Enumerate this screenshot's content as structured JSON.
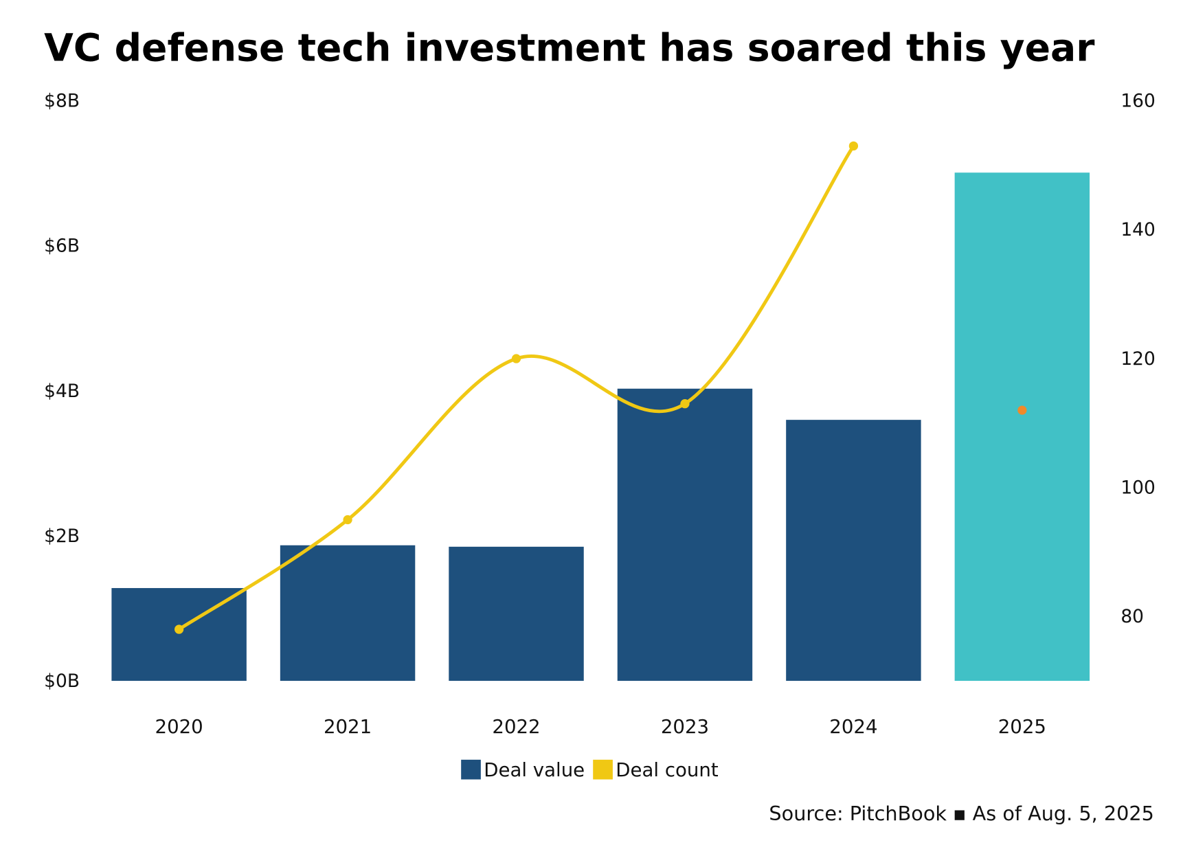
{
  "chart_data": {
    "type": "bar+line",
    "title": "VC defense tech investment has soared this year",
    "categories": [
      "2020",
      "2021",
      "2022",
      "2023",
      "2024",
      "2025"
    ],
    "series": [
      {
        "name": "Deal value",
        "type": "bar",
        "axis": "left",
        "unit": "$B",
        "values": [
          1.28,
          1.87,
          1.85,
          4.03,
          3.6,
          7.01
        ],
        "colors": [
          "#1e507d",
          "#1e507d",
          "#1e507d",
          "#1e507d",
          "#1e507d",
          "#41c1c6"
        ]
      },
      {
        "name": "Deal count",
        "type": "line",
        "axis": "right",
        "values": [
          78,
          95,
          120,
          113,
          153,
          112
        ],
        "color": "#f0c814",
        "last_point_color": "#f08a2a"
      }
    ],
    "left_axis": {
      "ylim": [
        0,
        8
      ],
      "ticks": [
        "$0B",
        "$2B",
        "$4B",
        "$6B",
        "$8B"
      ],
      "tick_values": [
        0,
        2,
        4,
        6,
        8
      ]
    },
    "right_axis": {
      "ylim": [
        70,
        160
      ],
      "ticks": [
        "80",
        "100",
        "120",
        "140",
        "160"
      ],
      "tick_values": [
        80,
        100,
        120,
        140,
        160
      ]
    },
    "grid": false,
    "legend": {
      "position": "bottom-center",
      "items": [
        {
          "label": "Deal value",
          "color": "#1e507d"
        },
        {
          "label": "Deal count",
          "color": "#f0c814"
        }
      ]
    },
    "source": "Source: PitchBook ▪ As of Aug. 5, 2025"
  }
}
